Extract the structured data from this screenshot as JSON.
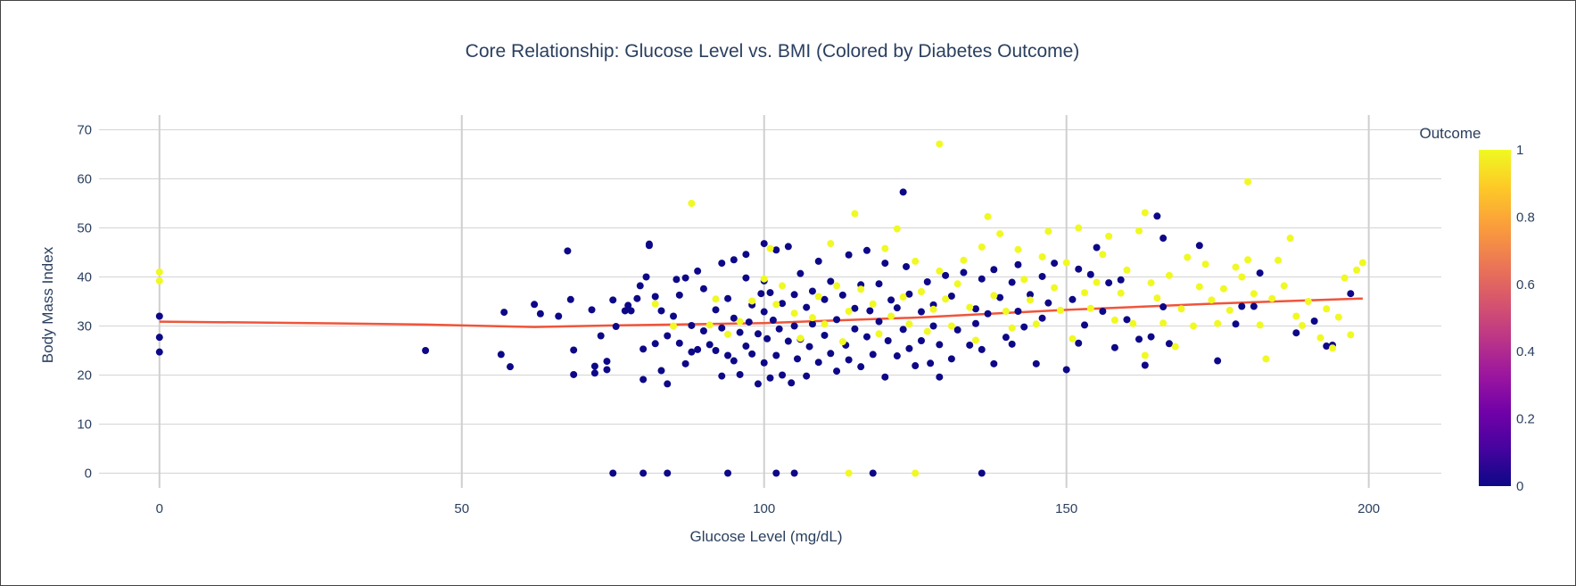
{
  "chart_data": {
    "type": "scatter",
    "title": "Core Relationship: Glucose Level vs. BMI (Colored by Diabetes Outcome)",
    "xlabel": "Glucose Level (mg/dL)",
    "ylabel": "Body Mass Index",
    "xlim": [
      -10,
      212
    ],
    "ylim": [
      -3,
      73
    ],
    "xticks": [
      0,
      50,
      100,
      150,
      200
    ],
    "yticks": [
      0,
      10,
      20,
      30,
      40,
      50,
      60,
      70
    ],
    "grid": true,
    "colorbar": {
      "title": "Outcome",
      "ticks": [
        "0",
        "0.2",
        "0.4",
        "0.6",
        "0.8",
        "1"
      ],
      "range": [
        0,
        1
      ],
      "colors": [
        "#0d0887",
        "#46039f",
        "#7201a8",
        "#9c179e",
        "#bd3786",
        "#d8576b",
        "#ed7953",
        "#fb9f3a",
        "#fdca26",
        "#f0f921"
      ]
    },
    "trendline": {
      "color": "#ef553b",
      "x": [
        0,
        25,
        44,
        62,
        75,
        100,
        125,
        150,
        175,
        199
      ],
      "y": [
        30.9,
        30.6,
        30.3,
        29.8,
        30.1,
        30.6,
        31.7,
        33.3,
        34.6,
        35.6
      ]
    },
    "series": [
      {
        "outcome": 0,
        "color": "#0d0887",
        "points": [
          [
            0,
            32.0
          ],
          [
            0,
            27.7
          ],
          [
            0,
            24.7
          ],
          [
            44,
            25.0
          ],
          [
            56.5,
            24.2
          ],
          [
            57,
            32.8
          ],
          [
            58,
            21.7
          ],
          [
            62,
            34.4
          ],
          [
            63,
            32.5
          ],
          [
            66,
            32.0
          ],
          [
            67.5,
            45.3
          ],
          [
            68,
            35.4
          ],
          [
            68.5,
            25.1
          ],
          [
            68.5,
            20.1
          ],
          [
            71.5,
            33.3
          ],
          [
            72,
            21.8
          ],
          [
            72,
            20.4
          ],
          [
            73,
            28.0
          ],
          [
            74,
            22.8
          ],
          [
            74,
            21.1
          ],
          [
            75,
            35.3
          ],
          [
            75.5,
            29.9
          ],
          [
            77,
            33.1
          ],
          [
            77.5,
            34.2
          ],
          [
            78,
            33.1
          ],
          [
            79,
            35.6
          ],
          [
            79.5,
            38.2
          ],
          [
            80,
            25.3
          ],
          [
            80,
            19.1
          ],
          [
            80.5,
            40.0
          ],
          [
            81,
            46.4
          ],
          [
            81,
            46.7
          ],
          [
            82,
            36.0
          ],
          [
            82,
            26.4
          ],
          [
            83,
            20.9
          ],
          [
            83,
            33.1
          ],
          [
            84,
            18.2
          ],
          [
            84,
            28.0
          ],
          [
            85,
            32.0
          ],
          [
            85.5,
            39.5
          ],
          [
            86,
            26.5
          ],
          [
            86,
            36.3
          ],
          [
            87,
            22.3
          ],
          [
            87,
            39.8
          ],
          [
            88,
            24.7
          ],
          [
            88,
            30.1
          ],
          [
            89,
            41.2
          ],
          [
            89,
            25.2
          ],
          [
            90,
            37.6
          ],
          [
            90,
            29.0
          ],
          [
            91,
            26.2
          ],
          [
            92,
            33.3
          ],
          [
            92,
            25.0
          ],
          [
            93,
            42.8
          ],
          [
            93,
            19.8
          ],
          [
            93,
            29.6
          ],
          [
            94,
            24.0
          ],
          [
            94,
            35.6
          ],
          [
            95,
            43.5
          ],
          [
            95,
            22.9
          ],
          [
            95,
            31.6
          ],
          [
            96,
            20.1
          ],
          [
            96,
            28.7
          ],
          [
            97,
            39.8
          ],
          [
            97,
            44.6
          ],
          [
            97,
            25.9
          ],
          [
            97.5,
            30.8
          ],
          [
            98,
            24.3
          ],
          [
            98,
            34.3
          ],
          [
            99,
            18.2
          ],
          [
            99,
            28.4
          ],
          [
            99.5,
            36.6
          ],
          [
            100,
            46.8
          ],
          [
            100,
            39.2
          ],
          [
            100,
            22.5
          ],
          [
            100,
            32.9
          ],
          [
            100.5,
            27.4
          ],
          [
            101,
            19.4
          ],
          [
            101,
            36.8
          ],
          [
            101.5,
            31.2
          ],
          [
            102,
            24.0
          ],
          [
            102,
            45.5
          ],
          [
            102.5,
            29.4
          ],
          [
            103,
            34.6
          ],
          [
            103,
            20.0
          ],
          [
            104,
            46.2
          ],
          [
            104,
            26.9
          ],
          [
            104.5,
            18.4
          ],
          [
            105,
            36.4
          ],
          [
            105,
            30.0
          ],
          [
            105.5,
            23.3
          ],
          [
            106,
            40.7
          ],
          [
            106,
            27.3
          ],
          [
            107,
            33.8
          ],
          [
            107,
            19.8
          ],
          [
            107.5,
            25.8
          ],
          [
            108,
            37.1
          ],
          [
            108,
            30.4
          ],
          [
            109,
            43.2
          ],
          [
            109,
            22.6
          ],
          [
            110,
            35.4
          ],
          [
            110,
            28.1
          ],
          [
            111,
            24.4
          ],
          [
            111,
            39.1
          ],
          [
            112,
            31.3
          ],
          [
            112,
            20.8
          ],
          [
            113,
            36.3
          ],
          [
            113.5,
            26.1
          ],
          [
            114,
            44.5
          ],
          [
            114,
            23.1
          ],
          [
            115,
            33.6
          ],
          [
            115,
            29.4
          ],
          [
            116,
            38.4
          ],
          [
            116,
            21.7
          ],
          [
            117,
            45.4
          ],
          [
            117,
            27.8
          ],
          [
            117.5,
            33.1
          ],
          [
            118,
            24.2
          ],
          [
            119,
            38.6
          ],
          [
            119,
            30.9
          ],
          [
            120,
            19.6
          ],
          [
            120,
            42.8
          ],
          [
            120.5,
            27.0
          ],
          [
            121,
            35.3
          ],
          [
            122,
            23.9
          ],
          [
            122,
            33.7
          ],
          [
            123,
            57.3
          ],
          [
            123,
            29.3
          ],
          [
            123.5,
            42.1
          ],
          [
            124,
            25.4
          ],
          [
            124,
            36.5
          ],
          [
            125,
            21.9
          ],
          [
            126,
            32.9
          ],
          [
            126,
            27.0
          ],
          [
            127,
            39.0
          ],
          [
            127.5,
            22.4
          ],
          [
            128,
            30.0
          ],
          [
            128,
            34.3
          ],
          [
            129,
            19.6
          ],
          [
            129,
            26.2
          ],
          [
            130,
            40.3
          ],
          [
            131,
            23.3
          ],
          [
            131,
            36.1
          ],
          [
            132,
            29.2
          ],
          [
            133,
            40.9
          ],
          [
            134,
            26.1
          ],
          [
            135,
            33.5
          ],
          [
            135,
            30.5
          ],
          [
            136,
            39.6
          ],
          [
            136,
            25.2
          ],
          [
            137,
            32.5
          ],
          [
            138,
            41.5
          ],
          [
            138,
            22.3
          ],
          [
            139,
            35.8
          ],
          [
            140,
            27.7
          ],
          [
            141,
            38.9
          ],
          [
            141,
            26.3
          ],
          [
            142,
            33.0
          ],
          [
            142,
            42.5
          ],
          [
            143,
            29.8
          ],
          [
            144,
            36.4
          ],
          [
            145,
            22.3
          ],
          [
            146,
            31.6
          ],
          [
            146,
            40.1
          ],
          [
            147,
            34.7
          ],
          [
            148,
            42.8
          ],
          [
            150,
            21.1
          ],
          [
            151,
            35.4
          ],
          [
            152,
            41.6
          ],
          [
            152,
            26.5
          ],
          [
            153,
            30.2
          ],
          [
            154,
            40.5
          ],
          [
            155,
            46.0
          ],
          [
            156,
            33.0
          ],
          [
            157,
            38.8
          ],
          [
            158,
            25.6
          ],
          [
            159,
            39.4
          ],
          [
            160,
            31.3
          ],
          [
            162,
            27.3
          ],
          [
            163,
            22.0
          ],
          [
            164,
            27.8
          ],
          [
            165,
            52.4
          ],
          [
            166,
            47.9
          ],
          [
            166,
            33.9
          ],
          [
            167,
            26.4
          ],
          [
            172,
            46.4
          ],
          [
            175,
            22.9
          ],
          [
            178,
            30.4
          ],
          [
            179,
            34.0
          ],
          [
            181,
            34.0
          ],
          [
            182,
            40.8
          ],
          [
            188,
            28.6
          ],
          [
            191,
            31.0
          ],
          [
            193,
            25.9
          ],
          [
            194,
            26.1
          ],
          [
            197,
            36.6
          ],
          [
            75,
            0
          ],
          [
            80,
            0
          ],
          [
            84,
            0
          ],
          [
            94,
            0
          ],
          [
            102,
            0
          ],
          [
            105,
            0
          ],
          [
            118,
            0
          ],
          [
            136,
            0
          ]
        ]
      },
      {
        "outcome": 1,
        "color": "#f0f921",
        "points": [
          [
            0,
            41.0
          ],
          [
            0,
            39.2
          ],
          [
            82,
            34.5
          ],
          [
            85,
            30.0
          ],
          [
            88,
            55.0
          ],
          [
            91,
            30.2
          ],
          [
            92,
            35.5
          ],
          [
            94,
            28.3
          ],
          [
            96,
            30.9
          ],
          [
            98,
            35.1
          ],
          [
            100,
            39.6
          ],
          [
            101,
            45.8
          ],
          [
            102,
            34.4
          ],
          [
            103,
            38.2
          ],
          [
            105,
            32.6
          ],
          [
            106,
            27.5
          ],
          [
            108,
            31.7
          ],
          [
            109,
            36.0
          ],
          [
            110,
            30.4
          ],
          [
            111,
            46.8
          ],
          [
            112,
            38.2
          ],
          [
            113,
            26.8
          ],
          [
            114,
            33.0
          ],
          [
            115,
            52.9
          ],
          [
            116,
            37.5
          ],
          [
            118,
            34.5
          ],
          [
            119,
            28.4
          ],
          [
            120,
            45.8
          ],
          [
            121,
            32.0
          ],
          [
            122,
            49.8
          ],
          [
            123,
            35.9
          ],
          [
            124,
            30.4
          ],
          [
            125,
            43.2
          ],
          [
            126,
            37.0
          ],
          [
            127,
            28.9
          ],
          [
            128,
            33.4
          ],
          [
            129,
            67.1
          ],
          [
            129,
            41.2
          ],
          [
            130,
            35.5
          ],
          [
            131,
            30.0
          ],
          [
            132,
            38.6
          ],
          [
            133,
            43.4
          ],
          [
            134,
            33.8
          ],
          [
            135,
            27.1
          ],
          [
            136,
            46.1
          ],
          [
            137,
            52.3
          ],
          [
            138,
            36.2
          ],
          [
            139,
            48.8
          ],
          [
            140,
            33.0
          ],
          [
            141,
            29.6
          ],
          [
            142,
            45.6
          ],
          [
            143,
            39.5
          ],
          [
            144,
            35.3
          ],
          [
            145,
            30.4
          ],
          [
            146,
            44.1
          ],
          [
            147,
            49.3
          ],
          [
            148,
            37.8
          ],
          [
            149,
            33.2
          ],
          [
            150,
            42.9
          ],
          [
            151,
            27.4
          ],
          [
            152,
            50.0
          ],
          [
            153,
            36.8
          ],
          [
            154,
            33.6
          ],
          [
            155,
            38.9
          ],
          [
            156,
            44.6
          ],
          [
            157,
            48.3
          ],
          [
            158,
            31.2
          ],
          [
            159,
            36.7
          ],
          [
            160,
            41.4
          ],
          [
            161,
            30.5
          ],
          [
            162,
            49.4
          ],
          [
            163,
            24.0
          ],
          [
            163,
            53.1
          ],
          [
            164,
            38.8
          ],
          [
            165,
            35.7
          ],
          [
            166,
            30.6
          ],
          [
            167,
            40.3
          ],
          [
            168,
            25.8
          ],
          [
            169,
            33.5
          ],
          [
            170,
            44.0
          ],
          [
            171,
            30.0
          ],
          [
            172,
            38.0
          ],
          [
            173,
            42.6
          ],
          [
            174,
            35.3
          ],
          [
            175,
            30.5
          ],
          [
            176,
            37.6
          ],
          [
            177,
            33.2
          ],
          [
            178,
            42.0
          ],
          [
            179,
            40.0
          ],
          [
            180,
            59.4
          ],
          [
            180,
            43.5
          ],
          [
            181,
            36.6
          ],
          [
            182,
            30.2
          ],
          [
            183,
            23.3
          ],
          [
            184,
            35.6
          ],
          [
            185,
            43.4
          ],
          [
            186,
            38.2
          ],
          [
            187,
            47.9
          ],
          [
            188,
            32.0
          ],
          [
            189,
            30.1
          ],
          [
            190,
            35.0
          ],
          [
            192,
            27.6
          ],
          [
            193,
            33.5
          ],
          [
            194,
            25.5
          ],
          [
            195,
            31.8
          ],
          [
            196,
            39.8
          ],
          [
            197,
            28.2
          ],
          [
            198,
            41.4
          ],
          [
            199,
            42.9
          ],
          [
            114,
            0
          ],
          [
            125,
            0
          ]
        ]
      }
    ]
  }
}
